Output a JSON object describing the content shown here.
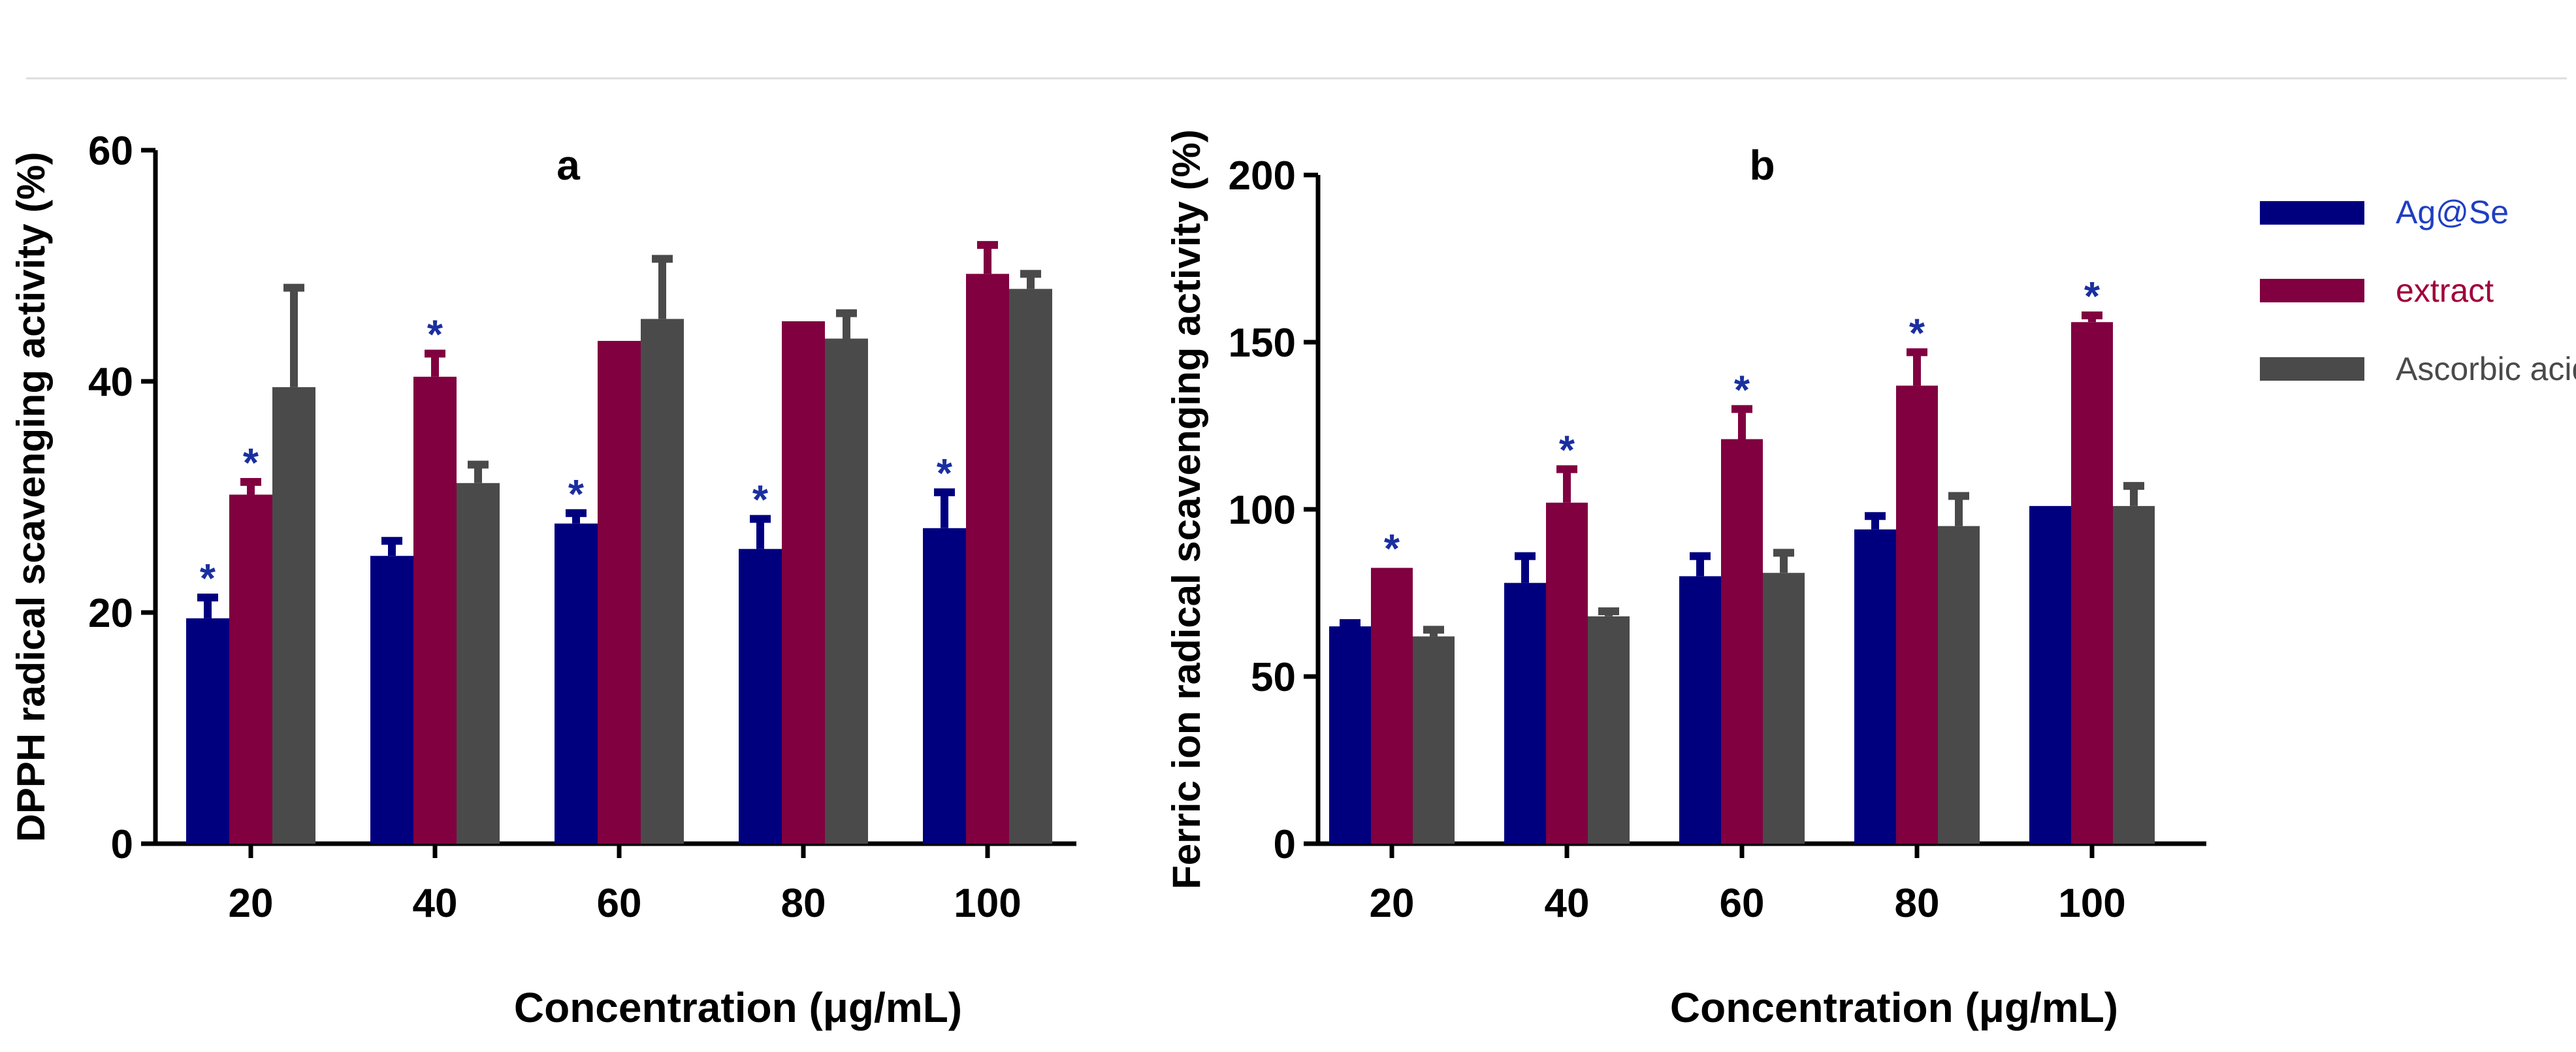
{
  "chart_data": [
    {
      "type": "bar",
      "title": "a",
      "xlabel": "Concentration (μg/mL)",
      "ylabel": "DPPH radical scavenging activity (%)",
      "categories": [
        "20",
        "40",
        "60",
        "80",
        "100"
      ],
      "ylim": [
        0,
        60
      ],
      "yticks": [
        "0",
        "20",
        "40",
        "60"
      ],
      "series": [
        {
          "name": "Ag@Se",
          "color": "#00007F",
          "values": [
            19.5,
            24.9,
            27.7,
            25.5,
            27.3
          ],
          "errors": [
            1.8,
            1.3,
            0.9,
            2.6,
            3.1
          ],
          "significant": [
            true,
            false,
            true,
            true,
            true
          ]
        },
        {
          "name": "extract",
          "color": "#800040",
          "values": [
            30.2,
            40.4,
            43.5,
            45.2,
            49.3
          ],
          "errors": [
            1.1,
            2.0,
            0,
            0,
            2.5
          ],
          "significant": [
            true,
            true,
            false,
            false,
            false
          ]
        },
        {
          "name": "Ascorbic acid",
          "color": "#4A4A4A",
          "values": [
            39.5,
            31.2,
            45.4,
            43.7,
            48.0
          ],
          "errors": [
            8.6,
            1.6,
            5.2,
            2.2,
            1.3
          ],
          "significant": [
            false,
            false,
            false,
            false,
            false
          ]
        }
      ]
    },
    {
      "type": "bar",
      "title": "b",
      "xlabel": "Concentration (μg/mL)",
      "ylabel": "Ferric ion radical scavenging activity (%)",
      "categories": [
        "20",
        "40",
        "60",
        "80",
        "100"
      ],
      "ylim": [
        0,
        200
      ],
      "yticks": [
        "0",
        "50",
        "100",
        "150",
        "200"
      ],
      "series": [
        {
          "name": "Ag@Se",
          "color": "#00007F",
          "values": [
            65,
            78,
            80,
            94,
            101
          ],
          "errors": [
            1,
            8,
            6,
            4,
            0
          ],
          "significant": [
            false,
            false,
            false,
            false,
            false
          ]
        },
        {
          "name": "extract",
          "color": "#800040",
          "values": [
            82.5,
            102,
            121,
            137,
            156
          ],
          "errors": [
            0,
            10,
            9,
            10,
            2
          ],
          "significant": [
            true,
            true,
            true,
            true,
            true
          ]
        },
        {
          "name": "Ascorbic acid",
          "color": "#4A4A4A",
          "values": [
            62,
            68,
            81,
            95,
            101
          ],
          "errors": [
            2,
            1.5,
            6,
            9,
            6
          ],
          "significant": [
            false,
            false,
            false,
            false,
            false
          ]
        }
      ]
    }
  ],
  "legend": {
    "items": [
      {
        "label": "Ag@Se",
        "color": "#00007F",
        "text_color": "#1F3FC0"
      },
      {
        "label": "extract",
        "color": "#800040",
        "text_color": "#A0003A"
      },
      {
        "label": "Ascorbic acid",
        "color": "#4A4A4A",
        "text_color": "#4A4A4A"
      }
    ]
  },
  "significance_marker": "*",
  "significance_color": "#1A2FA0"
}
